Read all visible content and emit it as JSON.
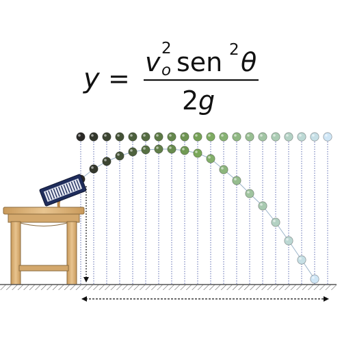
{
  "formula": {
    "lhs_var": "y",
    "equals": "=",
    "num_v": "v",
    "num_v_exp": "2",
    "num_v_sub": "o",
    "num_trig": "sen",
    "num_trig_exp": "2",
    "num_angle": "θ",
    "den_coef": "2",
    "den_var": "g"
  },
  "colors": {
    "ball_gradient_start": "#2b2a27",
    "ball_gradient_mid": "#7aa85a",
    "ball_gradient_end": "#cfe6f6",
    "guide_line": "#4a5aa8",
    "table_wood": "#d9b27a",
    "ground": "#555555"
  },
  "icons": {
    "launcher": "spring-launcher-icon",
    "table": "wooden-table-icon",
    "ground": "ground-hatch-icon"
  }
}
